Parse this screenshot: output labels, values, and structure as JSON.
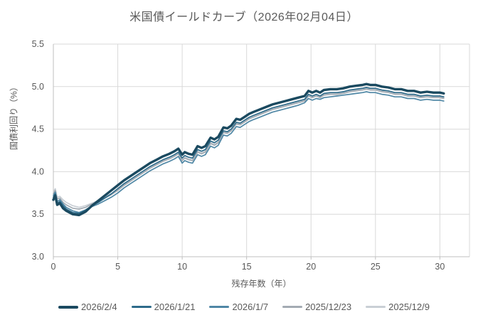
{
  "title": "米国債イールドカーブ（2026年02月04日）",
  "colors": {
    "background": "#ffffff",
    "text": "#595959",
    "grid": "#d9d9d9",
    "axis": "#bfbfbf"
  },
  "chart_data": {
    "type": "line",
    "title": "米国債イールドカーブ（2026年02月04日）",
    "xlabel": "残存年数（年）",
    "ylabel": "国債利回り（%）",
    "xlim": [
      0,
      32.3
    ],
    "ylim": [
      3.0,
      5.5
    ],
    "x_tick_values": [
      0,
      5,
      10,
      15,
      20,
      25,
      30
    ],
    "x_tick_labels": [
      "0",
      "5",
      "10",
      "15",
      "20",
      "25",
      "30"
    ],
    "y_tick_values": [
      3.0,
      3.5,
      4.0,
      4.5,
      5.0,
      5.5
    ],
    "y_tick_labels": [
      "3.0",
      "3.5",
      "4.0",
      "4.5",
      "5.0",
      "5.5"
    ],
    "grid": true,
    "legend_position": "bottom",
    "x": [
      0,
      0.15,
      0.3,
      0.5,
      0.75,
      1,
      1.5,
      2,
      2.5,
      3,
      3.5,
      4,
      4.5,
      5,
      5.5,
      6,
      6.5,
      7,
      7.5,
      8,
      8.5,
      9,
      9.4,
      9.7,
      10,
      10.2,
      10.5,
      10.8,
      11.2,
      11.5,
      11.8,
      12.2,
      12.5,
      12.8,
      13.2,
      13.5,
      13.8,
      14.2,
      14.5,
      14.8,
      15.2,
      15.5,
      16,
      16.5,
      17,
      17.5,
      18,
      18.5,
      19,
      19.5,
      19.8,
      20.1,
      20.4,
      20.7,
      21,
      21.5,
      22,
      22.5,
      23,
      23.5,
      24,
      24.3,
      24.6,
      25,
      25.5,
      26,
      26.5,
      27,
      27.5,
      28,
      28.5,
      29,
      29.5,
      30,
      30.3
    ],
    "series": [
      {
        "name": "2026/2/4",
        "color": "#1b4a60",
        "line_width": 3.4,
        "values": [
          3.67,
          3.72,
          3.61,
          3.63,
          3.57,
          3.54,
          3.5,
          3.49,
          3.53,
          3.6,
          3.66,
          3.72,
          3.78,
          3.84,
          3.9,
          3.95,
          4.0,
          4.05,
          4.1,
          4.14,
          4.18,
          4.21,
          4.24,
          4.27,
          4.2,
          4.23,
          4.21,
          4.2,
          4.3,
          4.28,
          4.3,
          4.4,
          4.38,
          4.41,
          4.52,
          4.51,
          4.54,
          4.62,
          4.61,
          4.64,
          4.68,
          4.7,
          4.73,
          4.76,
          4.79,
          4.81,
          4.83,
          4.85,
          4.87,
          4.89,
          4.95,
          4.93,
          4.95,
          4.93,
          4.96,
          4.97,
          4.97,
          4.98,
          5.0,
          5.01,
          5.02,
          5.03,
          5.02,
          5.02,
          5.0,
          4.99,
          4.97,
          4.97,
          4.95,
          4.95,
          4.93,
          4.94,
          4.93,
          4.93,
          4.92
        ]
      },
      {
        "name": "2026/1/21",
        "color": "#2e6b8a",
        "line_width": 1.7,
        "values": [
          3.7,
          3.74,
          3.63,
          3.65,
          3.6,
          3.56,
          3.52,
          3.51,
          3.55,
          3.6,
          3.64,
          3.69,
          3.74,
          3.8,
          3.86,
          3.91,
          3.96,
          4.01,
          4.06,
          4.1,
          4.14,
          4.17,
          4.2,
          4.23,
          4.16,
          4.19,
          4.17,
          4.16,
          4.26,
          4.24,
          4.26,
          4.36,
          4.34,
          4.37,
          4.48,
          4.47,
          4.5,
          4.58,
          4.57,
          4.6,
          4.64,
          4.66,
          4.69,
          4.72,
          4.75,
          4.77,
          4.79,
          4.81,
          4.83,
          4.85,
          4.91,
          4.89,
          4.91,
          4.89,
          4.92,
          4.93,
          4.93,
          4.94,
          4.96,
          4.97,
          4.98,
          4.99,
          4.98,
          4.98,
          4.96,
          4.95,
          4.93,
          4.93,
          4.91,
          4.91,
          4.89,
          4.9,
          4.89,
          4.89,
          4.88
        ]
      },
      {
        "name": "2026/1/7",
        "color": "#4f87a5",
        "line_width": 1.7,
        "values": [
          3.72,
          3.76,
          3.65,
          3.67,
          3.62,
          3.58,
          3.54,
          3.52,
          3.55,
          3.59,
          3.62,
          3.66,
          3.7,
          3.75,
          3.81,
          3.86,
          3.91,
          3.96,
          4.01,
          4.05,
          4.09,
          4.12,
          4.15,
          4.18,
          4.1,
          4.13,
          4.11,
          4.1,
          4.2,
          4.18,
          4.2,
          4.3,
          4.28,
          4.31,
          4.43,
          4.42,
          4.45,
          4.53,
          4.52,
          4.55,
          4.59,
          4.61,
          4.64,
          4.67,
          4.7,
          4.72,
          4.74,
          4.76,
          4.78,
          4.81,
          4.86,
          4.84,
          4.86,
          4.85,
          4.87,
          4.88,
          4.89,
          4.9,
          4.91,
          4.92,
          4.93,
          4.94,
          4.93,
          4.93,
          4.91,
          4.9,
          4.88,
          4.88,
          4.86,
          4.86,
          4.84,
          4.85,
          4.84,
          4.84,
          4.83
        ]
      },
      {
        "name": "2025/12/23",
        "color": "#a3abb3",
        "line_width": 1.7,
        "values": [
          3.74,
          3.78,
          3.68,
          3.69,
          3.64,
          3.61,
          3.57,
          3.56,
          3.58,
          3.62,
          3.65,
          3.69,
          3.73,
          3.78,
          3.84,
          3.89,
          3.94,
          3.99,
          4.04,
          4.08,
          4.12,
          4.15,
          4.18,
          4.21,
          4.13,
          4.16,
          4.14,
          4.13,
          4.23,
          4.21,
          4.23,
          4.33,
          4.31,
          4.34,
          4.46,
          4.45,
          4.48,
          4.56,
          4.55,
          4.58,
          4.62,
          4.64,
          4.67,
          4.7,
          4.73,
          4.75,
          4.77,
          4.79,
          4.81,
          4.83,
          4.89,
          4.87,
          4.89,
          4.87,
          4.9,
          4.91,
          4.91,
          4.92,
          4.94,
          4.95,
          4.96,
          4.97,
          4.96,
          4.96,
          4.94,
          4.93,
          4.91,
          4.91,
          4.89,
          4.89,
          4.87,
          4.88,
          4.87,
          4.87,
          4.86
        ]
      },
      {
        "name": "2025/12/9",
        "color": "#c9cfd5",
        "line_width": 1.7,
        "values": [
          3.76,
          3.8,
          3.7,
          3.71,
          3.67,
          3.64,
          3.6,
          3.58,
          3.6,
          3.63,
          3.66,
          3.7,
          3.74,
          3.79,
          3.85,
          3.9,
          3.95,
          4.0,
          4.05,
          4.09,
          4.13,
          4.16,
          4.19,
          4.22,
          4.14,
          4.17,
          4.15,
          4.14,
          4.24,
          4.22,
          4.24,
          4.34,
          4.32,
          4.35,
          4.47,
          4.46,
          4.49,
          4.57,
          4.56,
          4.59,
          4.63,
          4.65,
          4.68,
          4.71,
          4.74,
          4.76,
          4.78,
          4.8,
          4.82,
          4.84,
          4.9,
          4.88,
          4.9,
          4.88,
          4.91,
          4.92,
          4.92,
          4.93,
          4.95,
          4.96,
          4.97,
          4.98,
          4.97,
          4.97,
          4.95,
          4.94,
          4.92,
          4.92,
          4.9,
          4.9,
          4.88,
          4.89,
          4.88,
          4.88,
          4.87
        ]
      }
    ]
  }
}
